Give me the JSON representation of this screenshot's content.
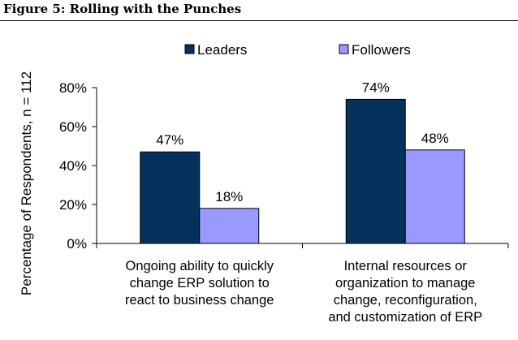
{
  "figure_title": "Figure 5: Rolling with the Punches",
  "chart_data": {
    "type": "bar",
    "title": "",
    "ylabel": "Percentage of Respondents, n = 112",
    "xlabel": "",
    "ylim": [
      0,
      80
    ],
    "yticks": [
      "0%",
      "20%",
      "40%",
      "60%",
      "80%"
    ],
    "categories": [
      [
        "Ongoing ability to quickly",
        "change ERP solution to",
        "react to business change"
      ],
      [
        "Internal resources or",
        "organization to manage",
        "change, reconfiguration,",
        "and customization of ERP"
      ]
    ],
    "series": [
      {
        "name": "Leaders",
        "values": [
          47,
          74
        ],
        "labels": [
          "47%",
          "74%"
        ],
        "color": "#04325c"
      },
      {
        "name": "Followers",
        "values": [
          18,
          48
        ],
        "labels": [
          "18%",
          "48%"
        ],
        "color": "#9999ff"
      }
    ],
    "legend_position": "top"
  }
}
